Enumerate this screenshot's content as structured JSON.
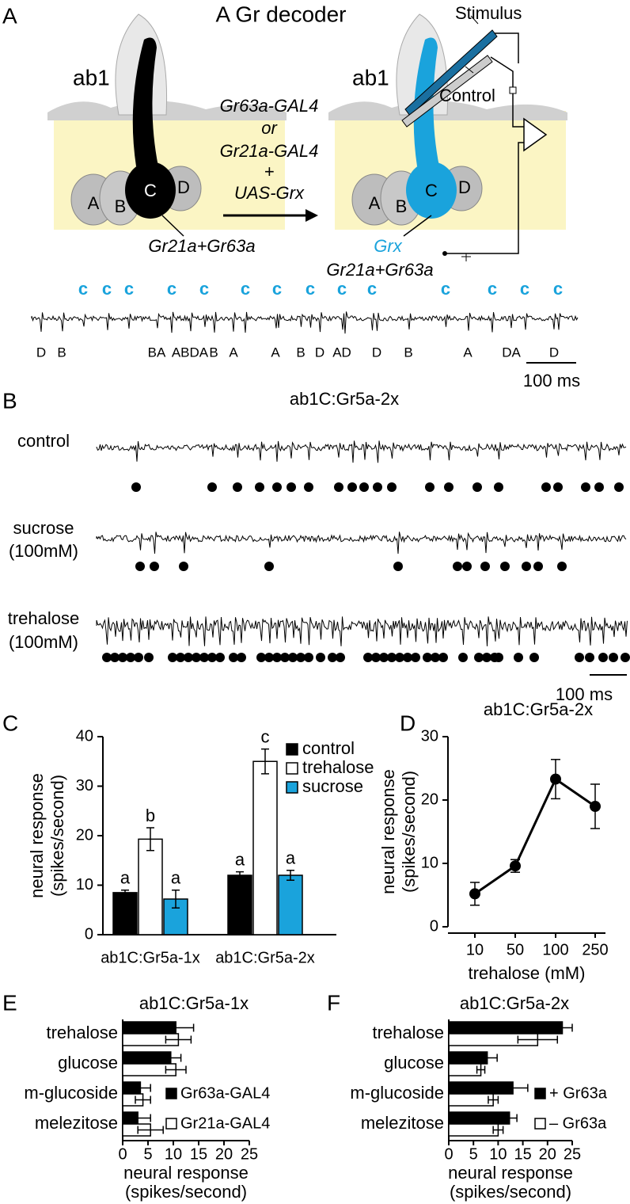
{
  "panel_a": {
    "letter": "A",
    "title": "A Gr decoder",
    "stimulus": "Stimulus",
    "control": "Control",
    "sensillum": [
      "ab1",
      "ab1"
    ],
    "neurons_left": [
      "A",
      "B",
      "C",
      "D"
    ],
    "neurons_right": [
      "A",
      "B",
      "C",
      "D"
    ],
    "genotype": [
      "Gr63a-GAL4",
      "or",
      "Gr21a-GAL4",
      "+",
      "UAS-Grx"
    ],
    "receptor_left": "Gr21a+Gr63a",
    "grx": "Grx",
    "receptor_right": "Gr21a+Gr63a",
    "c_labels": [
      "c",
      "c",
      "c",
      "c",
      "c",
      "c",
      "c",
      "c",
      "c",
      "c",
      "c",
      "c",
      "c",
      "c"
    ],
    "spike_labels": [
      "D",
      "B",
      "BA",
      "ABDA",
      "B",
      "A",
      "A",
      "B",
      "D",
      "AD",
      "D",
      "B",
      "A",
      "DA",
      "D"
    ],
    "scale": "100 ms"
  },
  "panel_b": {
    "letter": "B",
    "title": "ab1C:Gr5a-2x",
    "rows": [
      [
        "control"
      ],
      [
        "sucrose",
        "(100mM)"
      ],
      [
        "trehalose",
        "(100mM)"
      ]
    ],
    "scale": "100 ms"
  },
  "chart_data": [
    {
      "type": "bar",
      "letter": "C",
      "ylabel": [
        "neural response",
        "(spikes/second)"
      ],
      "categories": [
        "ab1C:Gr5a-1x",
        "ab1C:Gr5a-2x"
      ],
      "series": [
        {
          "name": "control",
          "color": "#000000",
          "values": [
            8.5,
            12
          ],
          "errors": [
            0.5,
            0.7
          ],
          "letters": [
            "a",
            "a"
          ]
        },
        {
          "name": "trehalose",
          "color": "#ffffff",
          "values": [
            19.3,
            35
          ],
          "errors": [
            2.3,
            2.5
          ],
          "letters": [
            "b",
            "c"
          ]
        },
        {
          "name": "sucrose",
          "color": "#1aa3dc",
          "values": [
            7.2,
            12
          ],
          "errors": [
            1.8,
            1
          ],
          "letters": [
            "a",
            "a"
          ]
        }
      ],
      "ylim": [
        0,
        40
      ],
      "yticks": [
        0,
        10,
        20,
        30,
        40
      ]
    },
    {
      "type": "line",
      "letter": "D",
      "title": "ab1C:Gr5a-2x",
      "ylabel": [
        "neural response",
        "(spikes/second)"
      ],
      "xlabel": "trehalose (mM)",
      "categories": [
        "10",
        "50",
        "100",
        "250"
      ],
      "values": [
        5.2,
        9.6,
        23.3,
        19
      ],
      "errors": [
        1.8,
        1,
        3.1,
        3.5
      ],
      "color": "#000000",
      "ylim": [
        0,
        30
      ],
      "yticks": [
        0,
        10,
        20,
        30
      ]
    },
    {
      "type": "barh",
      "letter": "E",
      "title": "ab1C:Gr5a-1x",
      "xlabel": [
        "neural response",
        "(spikes/second)"
      ],
      "categories": [
        "trehalose",
        "glucose",
        "m-glucoside",
        "melezitose"
      ],
      "series": [
        {
          "name": "Gr63a-GAL4",
          "color": "#000000",
          "values": [
            10.5,
            9.5,
            3.5,
            3
          ],
          "errors": [
            3.5,
            2,
            2,
            2.5
          ]
        },
        {
          "name": "Gr21a-GAL4",
          "color": "#ffffff",
          "values": [
            11,
            10.5,
            4,
            5.5
          ],
          "errors": [
            2.5,
            2,
            1.5,
            2.5
          ]
        }
      ],
      "xlim": [
        0,
        25
      ],
      "xticks": [
        0,
        5,
        10,
        15,
        20,
        25
      ]
    },
    {
      "type": "barh",
      "letter": "F",
      "title": "ab1C:Gr5a-2x",
      "xlabel": [
        "neural response",
        "(spikes/second)"
      ],
      "categories": [
        "trehalose",
        "glucose",
        "m-glucoside",
        "melezitose"
      ],
      "series": [
        {
          "name": "+ Gr63a",
          "color": "#000000",
          "values": [
            23,
            7.8,
            13,
            12.3
          ],
          "errors": [
            2,
            2,
            3,
            1.5
          ]
        },
        {
          "name": "– Gr63a",
          "color": "#ffffff",
          "values": [
            18,
            6.5,
            9,
            10
          ],
          "errors": [
            4,
            0.8,
            1,
            1
          ]
        }
      ],
      "xlim": [
        0,
        25
      ],
      "xticks": [
        0,
        5,
        10,
        15,
        20,
        25
      ]
    }
  ]
}
